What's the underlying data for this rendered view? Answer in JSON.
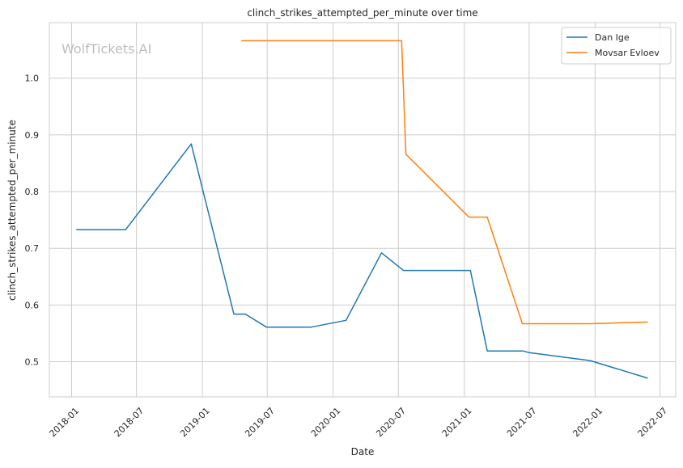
{
  "chart_data": {
    "type": "line",
    "title": "clinch_strikes_attempted_per_minute over time",
    "xlabel": "Date",
    "ylabel": "clinch_strikes_attempted_per_minute",
    "watermark": "WolfTickets.AI",
    "grid": true,
    "legend_position": "top-right",
    "xlim": [
      "2017-10-31",
      "2022-08-14"
    ],
    "ylim": [
      0.438,
      1.098
    ],
    "x_ticks": [
      "2018-01",
      "2018-07",
      "2019-01",
      "2019-07",
      "2020-01",
      "2020-07",
      "2021-01",
      "2021-07",
      "2022-01",
      "2022-07"
    ],
    "y_ticks": [
      0.5,
      0.6,
      0.7,
      0.8,
      0.9,
      1.0
    ],
    "y_tick_labels": [
      "0.5",
      "0.6",
      "0.7",
      "0.8",
      "0.9",
      "1.0"
    ],
    "series": [
      {
        "name": "Dan Ige",
        "color": "#1f77b4",
        "points": [
          [
            "2018-01-14",
            0.733
          ],
          [
            "2018-06-01",
            0.733
          ],
          [
            "2018-12-01",
            0.884
          ],
          [
            "2019-03-30",
            0.584
          ],
          [
            "2019-05-01",
            0.584
          ],
          [
            "2019-06-29",
            0.561
          ],
          [
            "2019-11-01",
            0.561
          ],
          [
            "2020-02-06",
            0.573
          ],
          [
            "2020-05-15",
            0.692
          ],
          [
            "2020-07-15",
            0.661
          ],
          [
            "2021-01-18",
            0.661
          ],
          [
            "2021-03-06",
            0.519
          ],
          [
            "2021-06-14",
            0.519
          ],
          [
            "2021-07-01",
            0.516
          ],
          [
            "2021-12-18",
            0.502
          ],
          [
            "2022-05-28",
            0.471
          ]
        ]
      },
      {
        "name": "Movsar Evloev",
        "color": "#ff7f0e",
        "points": [
          [
            "2019-04-20",
            1.066
          ],
          [
            "2020-07-10",
            1.066
          ],
          [
            "2020-07-22",
            0.866
          ],
          [
            "2021-01-14",
            0.755
          ],
          [
            "2021-03-06",
            0.755
          ],
          [
            "2021-06-12",
            0.567
          ],
          [
            "2021-12-18",
            0.567
          ],
          [
            "2022-05-28",
            0.57
          ]
        ]
      }
    ]
  }
}
